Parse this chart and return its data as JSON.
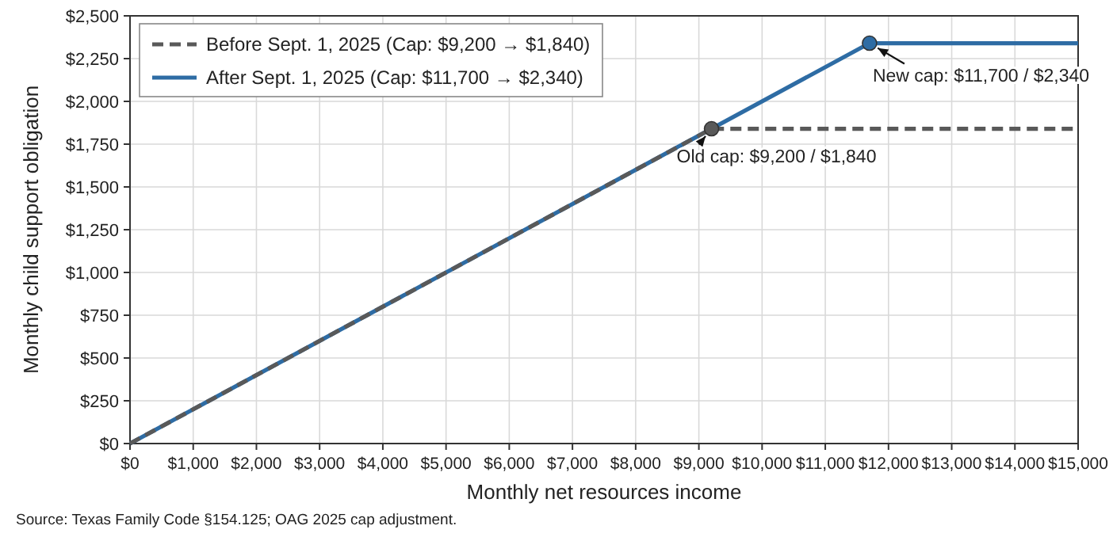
{
  "chart_data": {
    "type": "line",
    "xlabel": "Monthly net resources income",
    "ylabel": "Monthly child support obligation",
    "series": [
      {
        "name": "Before Sept. 1, 2025 (Cap: $9,200 → $1,840)",
        "color": "#595959",
        "line_style": "dashed",
        "x": [
          0,
          9200,
          15000
        ],
        "values": [
          0,
          1840,
          1840
        ]
      },
      {
        "name": "After Sept. 1, 2025 (Cap: $11,700 → $2,340)",
        "color": "#2e6ca4",
        "line_style": "solid",
        "x": [
          0,
          11700,
          15000
        ],
        "values": [
          0,
          2340,
          2340
        ]
      },
      {
        "type": "scatter",
        "color": "#595959",
        "marker": "circle",
        "x": [
          9200
        ],
        "values": [
          1840
        ]
      },
      {
        "type": "scatter",
        "color": "#2e6ca4",
        "marker": "circle",
        "x": [
          11700
        ],
        "values": [
          2340
        ]
      }
    ],
    "xlim": [
      0,
      15000
    ],
    "xticks": [
      {
        "value": 0,
        "label": "$0"
      },
      {
        "value": 1000,
        "label": "$1,000"
      },
      {
        "value": 2000,
        "label": "$2,000"
      },
      {
        "value": 3000,
        "label": "$3,000"
      },
      {
        "value": 4000,
        "label": "$4,000"
      },
      {
        "value": 5000,
        "label": "$5,000"
      },
      {
        "value": 6000,
        "label": "$6,000"
      },
      {
        "value": 7000,
        "label": "$7,000"
      },
      {
        "value": 8000,
        "label": "$8,000"
      },
      {
        "value": 9000,
        "label": "$9,000"
      },
      {
        "value": 10000,
        "label": "$10,000"
      },
      {
        "value": 11000,
        "label": "$11,000"
      },
      {
        "value": 12000,
        "label": "$12,000"
      },
      {
        "value": 13000,
        "label": "$13,000"
      },
      {
        "value": 14000,
        "label": "$14,000"
      },
      {
        "value": 15000,
        "label": "$15,000"
      }
    ],
    "ylim": [
      0,
      2500
    ],
    "yticks": [
      {
        "value": 0,
        "label": "$0"
      },
      {
        "value": 250,
        "label": "$250"
      },
      {
        "value": 500,
        "label": "$500"
      },
      {
        "value": 750,
        "label": "$750"
      },
      {
        "value": 1000,
        "label": "$1,000"
      },
      {
        "value": 1250,
        "label": "$1,250"
      },
      {
        "value": 1500,
        "label": "$1,500"
      },
      {
        "value": 1750,
        "label": "$1,750"
      },
      {
        "value": 2000,
        "label": "$2,000"
      },
      {
        "value": 2250,
        "label": "$2,250"
      },
      {
        "value": 2500,
        "label": "$2,500"
      }
    ],
    "grid": true,
    "legend": "top left",
    "annotations": [
      {
        "text": "Old cap: $9,200 / $1,840",
        "x": 9200,
        "y": 1840
      },
      {
        "text": "New cap: $11,700 / $2,340",
        "x": 11700,
        "y": 2340
      },
      "Source: Texas Family Code §154.125; OAG 2025 cap adjustment."
    ]
  }
}
